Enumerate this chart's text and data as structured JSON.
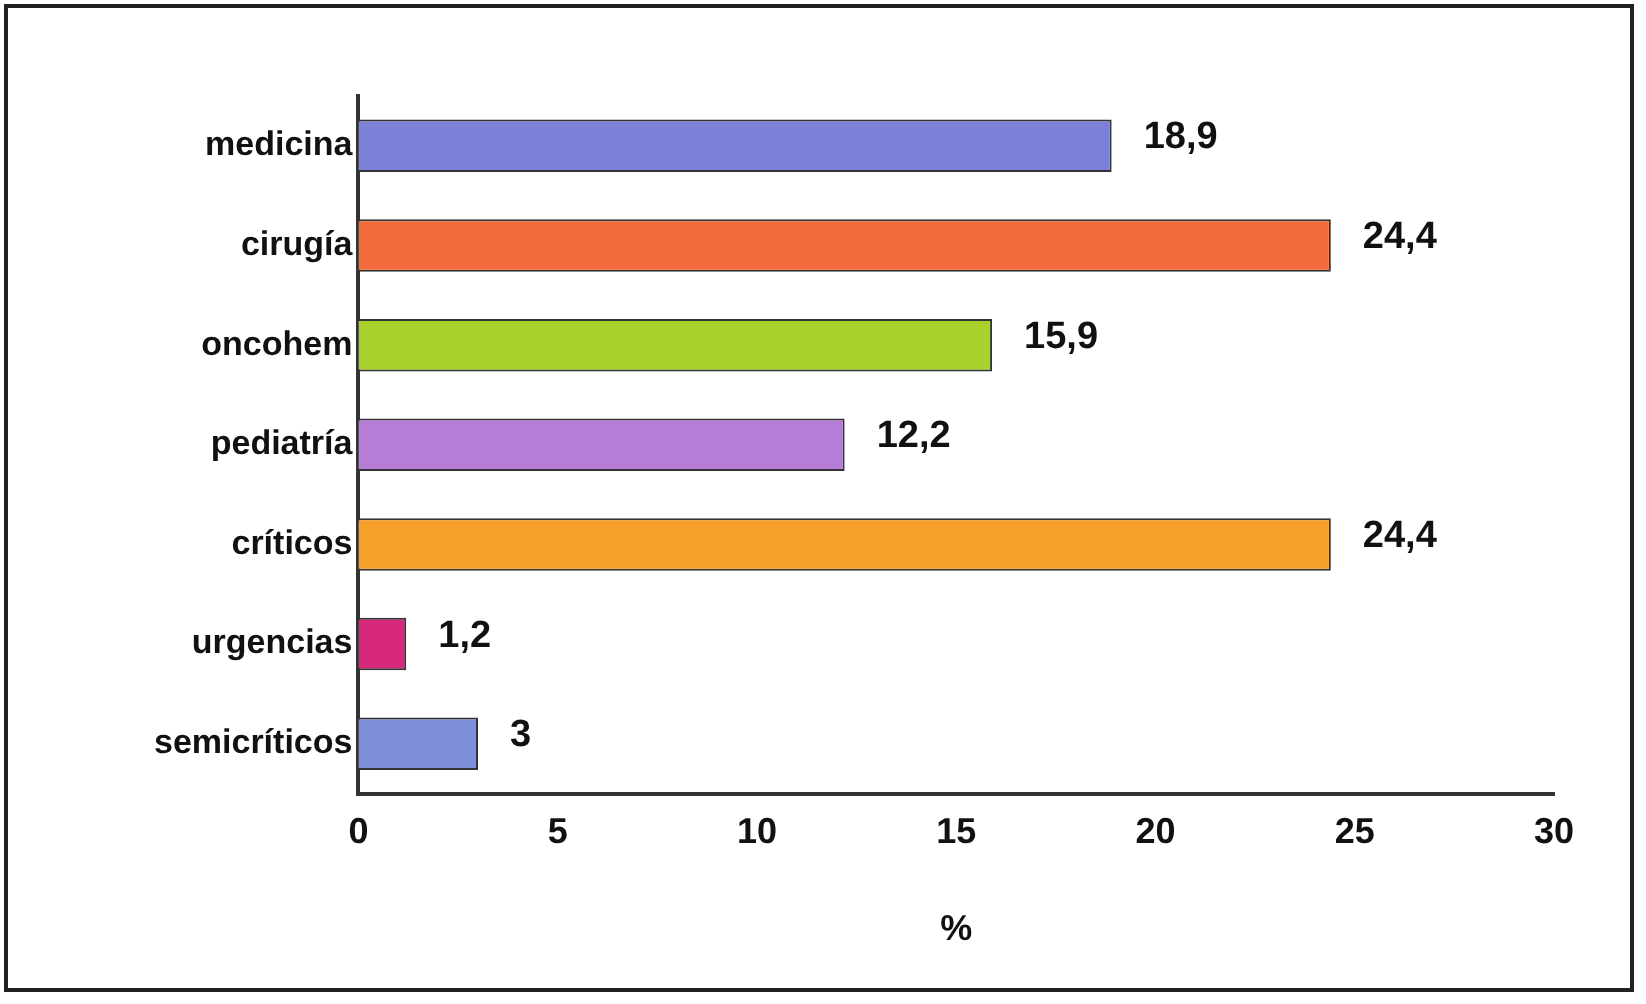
{
  "chart_data": {
    "type": "bar",
    "orientation": "horizontal",
    "xlabel": "%",
    "categories": [
      "medicina",
      "cirugía",
      "oncohem",
      "pediatría",
      "críticos",
      "urgencias",
      "semicríticos"
    ],
    "values": [
      18.9,
      24.4,
      15.9,
      12.2,
      24.4,
      1.2,
      3
    ],
    "colors": [
      "#7b80d8",
      "#f26b3a",
      "#a8d12c",
      "#b57cd8",
      "#f7a12c",
      "#d6287a",
      "#7d8fd9"
    ],
    "value_labels": [
      "18,9",
      "24,4",
      "15,9",
      "12,2",
      "24,4",
      "1,2",
      "3"
    ],
    "xlim": [
      0,
      30
    ],
    "xticks": [
      0,
      5,
      10,
      15,
      20,
      25,
      30
    ],
    "grid": false,
    "legend": false
  }
}
